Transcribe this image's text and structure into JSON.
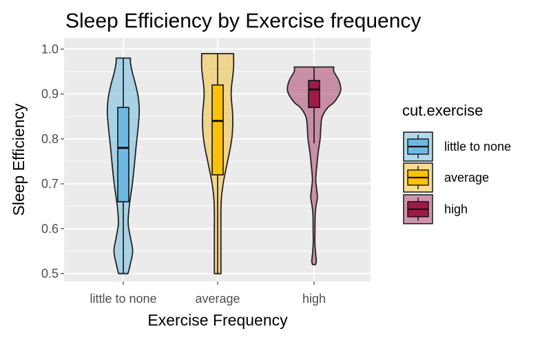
{
  "chart_data": {
    "type": "violin",
    "title": "Sleep Efficiency by Exercise frequency",
    "xlabel": "Exercise Frequency",
    "ylabel": "Sleep Efficiency",
    "ylim": [
      0.5,
      1.0
    ],
    "yticks": [
      0.5,
      0.6,
      0.7,
      0.8,
      0.9,
      1.0
    ],
    "ytick_labels": [
      "0.5",
      "0.6",
      "0.7",
      "0.8",
      "0.9",
      "1.0"
    ],
    "grid": true,
    "legend": {
      "title": "cut.exercise",
      "placement": "right",
      "entries": [
        "little to none",
        "average",
        "high"
      ]
    },
    "categories": [
      "little to none",
      "average",
      "high"
    ],
    "series": [
      {
        "name": "little to none",
        "fill": "#7BC0E0",
        "box_fill": "#6EB9E3",
        "box": {
          "min": 0.5,
          "q1": 0.66,
          "median": 0.78,
          "q3": 0.87,
          "max": 0.98
        },
        "density": [
          [
            0.5,
            0.17
          ],
          [
            0.52,
            0.25
          ],
          [
            0.55,
            0.34
          ],
          [
            0.58,
            0.26
          ],
          [
            0.61,
            0.18
          ],
          [
            0.64,
            0.2
          ],
          [
            0.67,
            0.26
          ],
          [
            0.7,
            0.33
          ],
          [
            0.74,
            0.4
          ],
          [
            0.78,
            0.46
          ],
          [
            0.82,
            0.53
          ],
          [
            0.86,
            0.58
          ],
          [
            0.89,
            0.55
          ],
          [
            0.92,
            0.45
          ],
          [
            0.95,
            0.32
          ],
          [
            0.97,
            0.26
          ],
          [
            0.98,
            0.26
          ]
        ]
      },
      {
        "name": "average",
        "fill": "#F2C44F",
        "box_fill": "#FFC107",
        "box": {
          "min": 0.5,
          "q1": 0.72,
          "median": 0.84,
          "q3": 0.92,
          "max": 0.99
        },
        "density": [
          [
            0.5,
            0.12
          ],
          [
            0.53,
            0.12
          ],
          [
            0.56,
            0.12
          ],
          [
            0.6,
            0.12
          ],
          [
            0.64,
            0.12
          ],
          [
            0.67,
            0.14
          ],
          [
            0.7,
            0.2
          ],
          [
            0.72,
            0.26
          ],
          [
            0.75,
            0.36
          ],
          [
            0.78,
            0.46
          ],
          [
            0.81,
            0.53
          ],
          [
            0.84,
            0.55
          ],
          [
            0.86,
            0.54
          ],
          [
            0.88,
            0.51
          ],
          [
            0.9,
            0.49
          ],
          [
            0.92,
            0.51
          ],
          [
            0.94,
            0.55
          ],
          [
            0.96,
            0.58
          ],
          [
            0.98,
            0.58
          ],
          [
            0.99,
            0.58
          ]
        ]
      },
      {
        "name": "high",
        "fill": "#B04F79",
        "box_fill": "#9E1A47",
        "box": {
          "min": 0.79,
          "q1": 0.87,
          "median": 0.91,
          "q3": 0.93,
          "max": 0.96
        },
        "density": [
          [
            0.52,
            0.05
          ],
          [
            0.525,
            0.08
          ],
          [
            0.53,
            0.08
          ],
          [
            0.55,
            0.05
          ],
          [
            0.57,
            0.03
          ],
          [
            0.6,
            0.035
          ],
          [
            0.63,
            0.04
          ],
          [
            0.65,
            0.07
          ],
          [
            0.67,
            0.12
          ],
          [
            0.69,
            0.09
          ],
          [
            0.71,
            0.06
          ],
          [
            0.74,
            0.1
          ],
          [
            0.77,
            0.15
          ],
          [
            0.8,
            0.22
          ],
          [
            0.83,
            0.25
          ],
          [
            0.85,
            0.3
          ],
          [
            0.87,
            0.5
          ],
          [
            0.88,
            0.7
          ],
          [
            0.895,
            0.88
          ],
          [
            0.91,
            0.97
          ],
          [
            0.93,
            0.9
          ],
          [
            0.95,
            0.72
          ],
          [
            0.96,
            0.72
          ]
        ]
      }
    ]
  }
}
